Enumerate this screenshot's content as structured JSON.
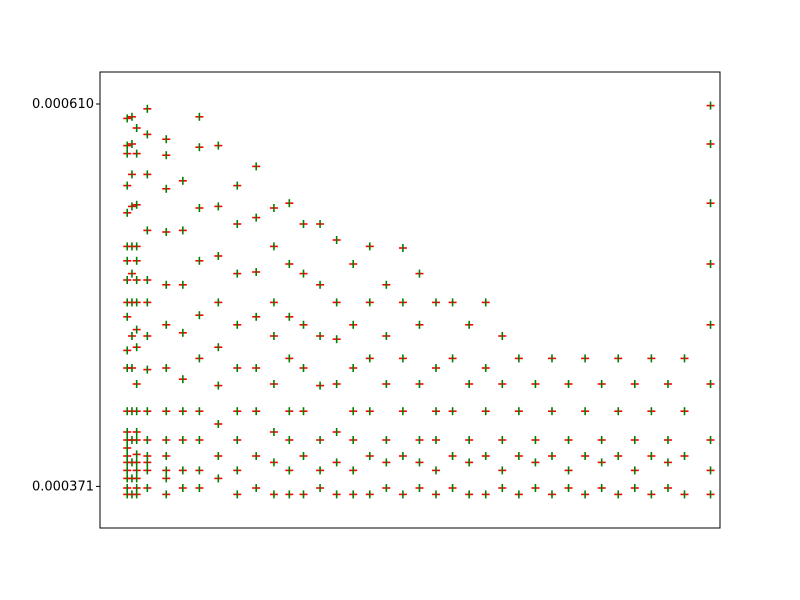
{
  "chart_data": {
    "type": "scatter",
    "title": "",
    "xlabel": "",
    "ylabel": "",
    "xlim": [
      -0.5,
      25.7
    ],
    "ylim": [
      0.000345,
      0.00063
    ],
    "grid": false,
    "legend": null,
    "colors": {
      "green_marker": "#008000",
      "red_marker": "#ff0000",
      "axes": "#000000"
    },
    "y_tick_labels_sample": [
      "0.000371",
      "0.000610"
    ],
    "series": [
      {
        "name": "",
        "marker": "plus",
        "color": "#008000",
        "overlay_color": "#ff0000",
        "points": [
          [
            0.65,
            0.000366
          ],
          [
            0.65,
            0.00037
          ],
          [
            0.65,
            0.000376
          ],
          [
            0.65,
            0.000381
          ],
          [
            0.65,
            0.000386
          ],
          [
            0.65,
            0.00039
          ],
          [
            0.65,
            0.000395
          ],
          [
            0.65,
            0.0004
          ],
          [
            0.65,
            0.000405
          ],
          [
            0.65,
            0.000418
          ],
          [
            0.65,
            0.000445
          ],
          [
            0.65,
            0.000456
          ],
          [
            0.65,
            0.000477
          ],
          [
            0.65,
            0.000486
          ],
          [
            0.65,
            0.0005
          ],
          [
            0.65,
            0.000512
          ],
          [
            0.65,
            0.000521
          ],
          [
            0.65,
            0.000542
          ],
          [
            0.65,
            0.000559
          ],
          [
            0.65,
            0.000579
          ],
          [
            0.65,
            0.000584
          ],
          [
            0.65,
            0.000601
          ],
          [
            0.85,
            0.000366
          ],
          [
            0.85,
            0.000376
          ],
          [
            0.85,
            0.000386
          ],
          [
            0.85,
            0.0004
          ],
          [
            0.85,
            0.000418
          ],
          [
            0.85,
            0.000445
          ],
          [
            0.85,
            0.000465
          ],
          [
            0.85,
            0.000486
          ],
          [
            0.85,
            0.000504
          ],
          [
            0.85,
            0.000521
          ],
          [
            0.85,
            0.000546
          ],
          [
            0.85,
            0.000566
          ],
          [
            0.85,
            0.000585
          ],
          [
            0.85,
            0.000602
          ],
          [
            1.05,
            0.000366
          ],
          [
            1.05,
            0.00037
          ],
          [
            1.05,
            0.000376
          ],
          [
            1.05,
            0.000381
          ],
          [
            1.05,
            0.000386
          ],
          [
            1.05,
            0.000391
          ],
          [
            1.05,
            0.0004
          ],
          [
            1.05,
            0.000405
          ],
          [
            1.05,
            0.000418
          ],
          [
            1.05,
            0.000435
          ],
          [
            1.05,
            0.000458
          ],
          [
            1.05,
            0.000469
          ],
          [
            1.05,
            0.000486
          ],
          [
            1.05,
            0.0005
          ],
          [
            1.05,
            0.000512
          ],
          [
            1.05,
            0.000521
          ],
          [
            1.05,
            0.000547
          ],
          [
            1.05,
            0.000579
          ],
          [
            1.05,
            0.000595
          ],
          [
            1.5,
            0.00037
          ],
          [
            1.5,
            0.000381
          ],
          [
            1.5,
            0.000386
          ],
          [
            1.5,
            0.00039
          ],
          [
            1.5,
            0.0004
          ],
          [
            1.5,
            0.000418
          ],
          [
            1.5,
            0.000444
          ],
          [
            1.5,
            0.000465
          ],
          [
            1.5,
            0.000486
          ],
          [
            1.5,
            0.0005
          ],
          [
            1.5,
            0.000531
          ],
          [
            1.5,
            0.000566
          ],
          [
            1.5,
            0.000591
          ],
          [
            1.5,
            0.000607
          ],
          [
            2.3,
            0.000366
          ],
          [
            2.3,
            0.000376
          ],
          [
            2.3,
            0.000381
          ],
          [
            2.3,
            0.00039
          ],
          [
            2.3,
            0.0004
          ],
          [
            2.3,
            0.000418
          ],
          [
            2.3,
            0.000445
          ],
          [
            2.3,
            0.000472
          ],
          [
            2.3,
            0.000497
          ],
          [
            2.3,
            0.00053
          ],
          [
            2.3,
            0.000557
          ],
          [
            2.3,
            0.000578
          ],
          [
            2.3,
            0.000588
          ],
          [
            3.0,
            0.00037
          ],
          [
            3.0,
            0.000381
          ],
          [
            3.0,
            0.0004
          ],
          [
            3.0,
            0.000418
          ],
          [
            3.0,
            0.000438
          ],
          [
            3.0,
            0.000467
          ],
          [
            3.0,
            0.000497
          ],
          [
            3.0,
            0.000531
          ],
          [
            3.0,
            0.000562
          ],
          [
            3.7,
            0.00037
          ],
          [
            3.7,
            0.000381
          ],
          [
            3.7,
            0.0004
          ],
          [
            3.7,
            0.000418
          ],
          [
            3.7,
            0.000451
          ],
          [
            3.7,
            0.000478
          ],
          [
            3.7,
            0.000512
          ],
          [
            3.7,
            0.000545
          ],
          [
            3.7,
            0.000583
          ],
          [
            3.7,
            0.000602
          ],
          [
            4.5,
            0.000376
          ],
          [
            4.5,
            0.00039
          ],
          [
            4.5,
            0.00041
          ],
          [
            4.5,
            0.000434
          ],
          [
            4.5,
            0.000458
          ],
          [
            4.5,
            0.000486
          ],
          [
            4.5,
            0.000515
          ],
          [
            4.5,
            0.000546
          ],
          [
            4.5,
            0.000584
          ],
          [
            5.3,
            0.000366
          ],
          [
            5.3,
            0.000381
          ],
          [
            5.3,
            0.0004
          ],
          [
            5.3,
            0.000418
          ],
          [
            5.3,
            0.000445
          ],
          [
            5.3,
            0.000472
          ],
          [
            5.3,
            0.000504
          ],
          [
            5.3,
            0.000535
          ],
          [
            5.3,
            0.000559
          ],
          [
            6.1,
            0.00037
          ],
          [
            6.1,
            0.00039
          ],
          [
            6.1,
            0.000418
          ],
          [
            6.1,
            0.000445
          ],
          [
            6.1,
            0.000477
          ],
          [
            6.1,
            0.000505
          ],
          [
            6.1,
            0.000539
          ],
          [
            6.1,
            0.000571
          ],
          [
            6.85,
            0.000366
          ],
          [
            6.85,
            0.000386
          ],
          [
            6.85,
            0.000405
          ],
          [
            6.85,
            0.000435
          ],
          [
            6.85,
            0.000465
          ],
          [
            6.85,
            0.000486
          ],
          [
            6.85,
            0.000521
          ],
          [
            6.85,
            0.000545
          ],
          [
            7.5,
            0.000366
          ],
          [
            7.5,
            0.000381
          ],
          [
            7.5,
            0.0004
          ],
          [
            7.5,
            0.000418
          ],
          [
            7.5,
            0.000451
          ],
          [
            7.5,
            0.000477
          ],
          [
            7.5,
            0.00051
          ],
          [
            7.5,
            0.000548
          ],
          [
            8.1,
            0.000366
          ],
          [
            8.1,
            0.00039
          ],
          [
            8.1,
            0.000418
          ],
          [
            8.1,
            0.000445
          ],
          [
            8.1,
            0.000472
          ],
          [
            8.1,
            0.000504
          ],
          [
            8.1,
            0.000535
          ],
          [
            8.8,
            0.00037
          ],
          [
            8.8,
            0.000381
          ],
          [
            8.8,
            0.0004
          ],
          [
            8.8,
            0.000434
          ],
          [
            8.8,
            0.000465
          ],
          [
            8.8,
            0.000497
          ],
          [
            8.8,
            0.000535
          ],
          [
            9.5,
            0.000366
          ],
          [
            9.5,
            0.000386
          ],
          [
            9.5,
            0.000405
          ],
          [
            9.5,
            0.000435
          ],
          [
            9.5,
            0.000463
          ],
          [
            9.5,
            0.000486
          ],
          [
            9.5,
            0.000525
          ],
          [
            10.2,
            0.000366
          ],
          [
            10.2,
            0.000381
          ],
          [
            10.2,
            0.0004
          ],
          [
            10.2,
            0.000418
          ],
          [
            10.2,
            0.000445
          ],
          [
            10.2,
            0.000472
          ],
          [
            10.2,
            0.00051
          ],
          [
            10.9,
            0.000366
          ],
          [
            10.9,
            0.00039
          ],
          [
            10.9,
            0.000418
          ],
          [
            10.9,
            0.000451
          ],
          [
            10.9,
            0.000486
          ],
          [
            10.9,
            0.000521
          ],
          [
            11.6,
            0.00037
          ],
          [
            11.6,
            0.000386
          ],
          [
            11.6,
            0.0004
          ],
          [
            11.6,
            0.000435
          ],
          [
            11.6,
            0.000465
          ],
          [
            11.6,
            0.000497
          ],
          [
            12.3,
            0.000366
          ],
          [
            12.3,
            0.00039
          ],
          [
            12.3,
            0.000418
          ],
          [
            12.3,
            0.000451
          ],
          [
            12.3,
            0.000486
          ],
          [
            12.3,
            0.00052
          ],
          [
            13.0,
            0.00037
          ],
          [
            13.0,
            0.000386
          ],
          [
            13.0,
            0.0004
          ],
          [
            13.0,
            0.000435
          ],
          [
            13.0,
            0.000472
          ],
          [
            13.0,
            0.000504
          ],
          [
            13.7,
            0.000366
          ],
          [
            13.7,
            0.000381
          ],
          [
            13.7,
            0.0004
          ],
          [
            13.7,
            0.000418
          ],
          [
            13.7,
            0.000445
          ],
          [
            13.7,
            0.000486
          ],
          [
            14.4,
            0.00037
          ],
          [
            14.4,
            0.00039
          ],
          [
            14.4,
            0.000418
          ],
          [
            14.4,
            0.000451
          ],
          [
            14.4,
            0.000486
          ],
          [
            15.1,
            0.000366
          ],
          [
            15.1,
            0.000386
          ],
          [
            15.1,
            0.0004
          ],
          [
            15.1,
            0.000435
          ],
          [
            15.1,
            0.000472
          ],
          [
            15.8,
            0.000366
          ],
          [
            15.8,
            0.00039
          ],
          [
            15.8,
            0.000418
          ],
          [
            15.8,
            0.000445
          ],
          [
            15.8,
            0.000486
          ],
          [
            16.5,
            0.00037
          ],
          [
            16.5,
            0.000381
          ],
          [
            16.5,
            0.0004
          ],
          [
            16.5,
            0.000435
          ],
          [
            16.5,
            0.000465
          ],
          [
            17.2,
            0.000366
          ],
          [
            17.2,
            0.00039
          ],
          [
            17.2,
            0.000418
          ],
          [
            17.2,
            0.000451
          ],
          [
            17.9,
            0.00037
          ],
          [
            17.9,
            0.000386
          ],
          [
            17.9,
            0.0004
          ],
          [
            17.9,
            0.000435
          ],
          [
            18.6,
            0.000366
          ],
          [
            18.6,
            0.00039
          ],
          [
            18.6,
            0.000418
          ],
          [
            18.6,
            0.000451
          ],
          [
            19.3,
            0.00037
          ],
          [
            19.3,
            0.000381
          ],
          [
            19.3,
            0.0004
          ],
          [
            19.3,
            0.000435
          ],
          [
            20.0,
            0.000366
          ],
          [
            20.0,
            0.00039
          ],
          [
            20.0,
            0.000418
          ],
          [
            20.0,
            0.000451
          ],
          [
            20.7,
            0.00037
          ],
          [
            20.7,
            0.000386
          ],
          [
            20.7,
            0.0004
          ],
          [
            20.7,
            0.000435
          ],
          [
            21.4,
            0.000366
          ],
          [
            21.4,
            0.00039
          ],
          [
            21.4,
            0.000418
          ],
          [
            21.4,
            0.000451
          ],
          [
            22.1,
            0.00037
          ],
          [
            22.1,
            0.000381
          ],
          [
            22.1,
            0.0004
          ],
          [
            22.1,
            0.000435
          ],
          [
            22.8,
            0.000366
          ],
          [
            22.8,
            0.00039
          ],
          [
            22.8,
            0.000418
          ],
          [
            22.8,
            0.000451
          ],
          [
            23.5,
            0.00037
          ],
          [
            23.5,
            0.000386
          ],
          [
            23.5,
            0.0004
          ],
          [
            23.5,
            0.000435
          ],
          [
            24.2,
            0.000366
          ],
          [
            24.2,
            0.00039
          ],
          [
            24.2,
            0.000418
          ],
          [
            24.2,
            0.000451
          ],
          [
            25.3,
            0.000366
          ],
          [
            25.3,
            0.000381
          ],
          [
            25.3,
            0.0004
          ],
          [
            25.3,
            0.000435
          ],
          [
            25.3,
            0.000472
          ],
          [
            25.3,
            0.00051
          ],
          [
            25.3,
            0.000548
          ],
          [
            25.3,
            0.000585
          ],
          [
            25.3,
            0.000609
          ]
        ]
      }
    ]
  }
}
